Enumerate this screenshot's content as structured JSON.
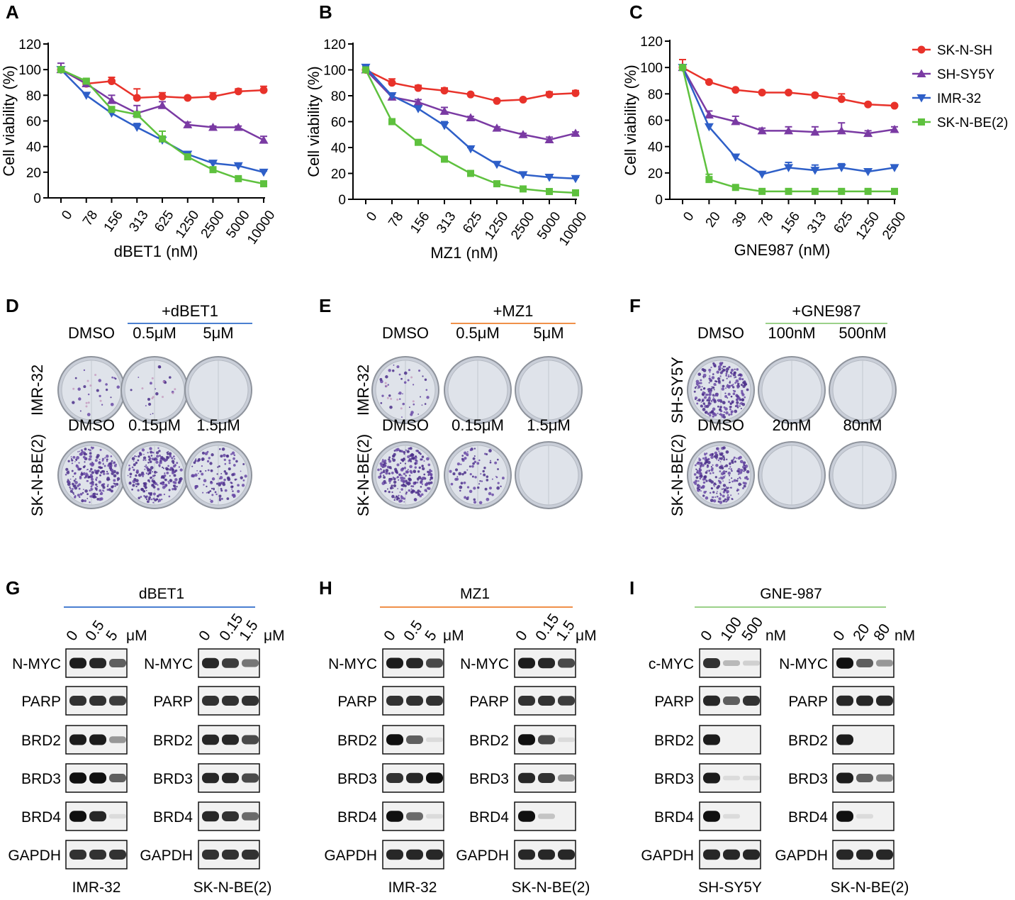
{
  "colors": {
    "SK-N-SH": "#e8322a",
    "SH-SY5Y": "#7a3aa3",
    "IMR-32": "#2e5fc8",
    "SK-N-BE(2)": "#5ec13e",
    "dbet1_line": "#4a7fd1",
    "mz1_line": "#f09049",
    "gne_line": "#9bd189"
  },
  "series_meta": [
    {
      "name": "SK-N-SH",
      "marker": "circle"
    },
    {
      "name": "SH-SY5Y",
      "marker": "triangle-up"
    },
    {
      "name": "IMR-32",
      "marker": "triangle-down"
    },
    {
      "name": "SK-N-BE(2)",
      "marker": "square"
    }
  ],
  "chart_data": [
    {
      "panel": "A",
      "type": "line",
      "title": "",
      "xlabel": "dBET1 (nM)",
      "ylabel": "Cell viability (%)",
      "categories": [
        "0",
        "78",
        "156",
        "313",
        "625",
        "1250",
        "2500",
        "5000",
        "10000"
      ],
      "ylim": [
        0,
        120
      ],
      "yticks": [
        0,
        20,
        40,
        60,
        80,
        100,
        120
      ],
      "series": [
        {
          "name": "SK-N-SH",
          "values": [
            100,
            89,
            91,
            78,
            79,
            78,
            79,
            83,
            84
          ],
          "errors": [
            2,
            2,
            3,
            7,
            3,
            1,
            3,
            2,
            3
          ]
        },
        {
          "name": "SH-SY5Y",
          "values": [
            100,
            89,
            76,
            66,
            72,
            57,
            55,
            55,
            45
          ],
          "errors": [
            5,
            3,
            4,
            6,
            3,
            2,
            1,
            1,
            3
          ]
        },
        {
          "name": "IMR-32",
          "values": [
            100,
            80,
            66,
            55,
            45,
            34,
            27,
            25,
            20
          ],
          "errors": [
            2,
            2,
            2,
            3,
            2,
            2,
            1,
            1,
            1
          ]
        },
        {
          "name": "SK-N-BE(2)",
          "values": [
            100,
            91,
            69,
            65,
            46,
            32,
            22,
            15,
            11
          ],
          "errors": [
            2,
            2,
            2,
            2,
            6,
            2,
            2,
            1,
            1
          ]
        }
      ]
    },
    {
      "panel": "B",
      "type": "line",
      "title": "",
      "xlabel": "MZ1 (nM)",
      "ylabel": "Cell viability (%)",
      "categories": [
        "0",
        "78",
        "156",
        "313",
        "625",
        "1250",
        "2500",
        "5000",
        "10000"
      ],
      "ylim": [
        0,
        120
      ],
      "yticks": [
        0,
        20,
        40,
        60,
        80,
        100,
        120
      ],
      "series": [
        {
          "name": "SK-N-SH",
          "values": [
            100,
            90,
            86,
            84,
            81,
            76,
            77,
            81,
            82
          ],
          "errors": [
            2,
            3,
            2,
            2,
            1,
            1,
            1,
            2,
            2
          ]
        },
        {
          "name": "SH-SY5Y",
          "values": [
            100,
            79,
            75,
            68,
            63,
            55,
            50,
            46,
            51
          ],
          "errors": [
            2,
            2,
            2,
            3,
            1,
            1,
            1,
            2,
            1
          ]
        },
        {
          "name": "IMR-32",
          "values": [
            102,
            80,
            70,
            57,
            39,
            27,
            19,
            17,
            16
          ],
          "errors": [
            1,
            2,
            2,
            3,
            1,
            2,
            1,
            1,
            1
          ]
        },
        {
          "name": "SK-N-BE(2)",
          "values": [
            100,
            60,
            44,
            31,
            20,
            12,
            8,
            6,
            5
          ],
          "errors": [
            2,
            1,
            1,
            2,
            1,
            1,
            1,
            1,
            1
          ]
        }
      ]
    },
    {
      "panel": "C",
      "type": "line",
      "title": "",
      "xlabel": "GNE987 (nM)",
      "ylabel": "Cell viability (%)",
      "categories": [
        "0",
        "20",
        "39",
        "78",
        "156",
        "313",
        "625",
        "1250",
        "2500"
      ],
      "ylim": [
        0,
        120
      ],
      "yticks": [
        0,
        20,
        40,
        60,
        80,
        100,
        120
      ],
      "legend": [
        "SK-N-SH",
        "SH-SY5Y",
        "IMR-32",
        "SK-N-BE(2)"
      ],
      "legend_position": "right",
      "series": [
        {
          "name": "SK-N-SH",
          "values": [
            100,
            89,
            83,
            81,
            81,
            79,
            76,
            72,
            71
          ],
          "errors": [
            6,
            1,
            1,
            1,
            1,
            1,
            4,
            1,
            1
          ]
        },
        {
          "name": "SH-SY5Y",
          "values": [
            100,
            64,
            59,
            52,
            52,
            51,
            52,
            50,
            53
          ],
          "errors": [
            2,
            3,
            4,
            2,
            3,
            4,
            6,
            2,
            2
          ]
        },
        {
          "name": "IMR-32",
          "values": [
            100,
            55,
            32,
            19,
            24,
            22,
            24,
            21,
            24
          ],
          "errors": [
            2,
            2,
            2,
            2,
            4,
            4,
            3,
            2,
            1
          ]
        },
        {
          "name": "SK-N-BE(2)",
          "values": [
            100,
            15,
            9,
            6,
            6,
            6,
            6,
            6,
            6
          ],
          "errors": [
            2,
            4,
            1,
            1,
            1,
            1,
            1,
            1,
            1
          ]
        }
      ]
    }
  ],
  "colony": [
    {
      "panel": "D",
      "drug": "+dBET1",
      "line_color_key": "dbet1_line",
      "rows": [
        {
          "cell": "IMR-32",
          "labels": [
            "DMSO",
            "0.5μM",
            "5μM"
          ],
          "density": [
            0.08,
            0.06,
            0.0
          ]
        },
        {
          "cell": "SK-N-BE(2)",
          "labels": [
            "DMSO",
            "0.15μM",
            "1.5μM"
          ],
          "density": [
            0.9,
            0.85,
            0.45
          ]
        }
      ]
    },
    {
      "panel": "E",
      "drug": "+MZ1",
      "line_color_key": "mz1_line",
      "rows": [
        {
          "cell": "IMR-32",
          "labels": [
            "DMSO",
            "0.5μM",
            "5μM"
          ],
          "density": [
            0.15,
            0.0,
            0.0
          ]
        },
        {
          "cell": "SK-N-BE(2)",
          "labels": [
            "DMSO",
            "0.15μM",
            "1.5μM"
          ],
          "density": [
            0.9,
            0.3,
            0.0
          ]
        }
      ]
    },
    {
      "panel": "F",
      "drug": "+GNE987",
      "line_color_key": "gne_line",
      "rows": [
        {
          "cell": "SH-SY5Y",
          "labels": [
            "DMSO",
            "100nM",
            "500nM"
          ],
          "density": [
            1.0,
            0.0,
            0.0
          ]
        },
        {
          "cell": "SK-N-BE(2)",
          "labels": [
            "DMSO",
            "20nM",
            "80nM"
          ],
          "density": [
            0.95,
            0.0,
            0.0
          ]
        }
      ]
    }
  ],
  "western": [
    {
      "panel": "G",
      "drug": "dBET1",
      "line_color_key": "dbet1_line",
      "blots": [
        {
          "cell": "IMR-32",
          "doses": [
            "0",
            "0.5",
            "5"
          ],
          "unit": "μM",
          "proteins": [
            "N-MYC",
            "PARP",
            "BRD2",
            "BRD3",
            "BRD4",
            "GAPDH"
          ],
          "bands": [
            [
              0.9,
              0.85,
              0.6
            ],
            [
              0.8,
              0.8,
              0.75
            ],
            [
              0.9,
              0.9,
              0.35
            ],
            [
              0.95,
              0.95,
              0.6
            ],
            [
              0.95,
              0.85,
              0.05
            ],
            [
              0.8,
              0.8,
              0.8
            ]
          ]
        },
        {
          "cell": "SK-N-BE(2)",
          "doses": [
            "0",
            "0.15",
            "1.5"
          ],
          "unit": "μM",
          "proteins": [
            "N-MYC",
            "PARP",
            "BRD2",
            "BRD3",
            "BRD4",
            "GAPDH"
          ],
          "bands": [
            [
              0.85,
              0.75,
              0.5
            ],
            [
              0.8,
              0.8,
              0.8
            ],
            [
              0.85,
              0.85,
              0.7
            ],
            [
              0.85,
              0.85,
              0.7
            ],
            [
              0.85,
              0.8,
              0.55
            ],
            [
              0.8,
              0.8,
              0.8
            ]
          ]
        }
      ]
    },
    {
      "panel": "H",
      "drug": "MZ1",
      "line_color_key": "mz1_line",
      "blots": [
        {
          "cell": "IMR-32",
          "doses": [
            "0",
            "0.5",
            "5"
          ],
          "unit": "μM",
          "proteins": [
            "N-MYC",
            "PARP",
            "BRD2",
            "BRD3",
            "BRD4",
            "GAPDH"
          ],
          "bands": [
            [
              0.9,
              0.85,
              0.7
            ],
            [
              0.8,
              0.8,
              0.8
            ],
            [
              0.95,
              0.6,
              0.05
            ],
            [
              0.8,
              0.85,
              0.95
            ],
            [
              0.95,
              0.55,
              0.05
            ],
            [
              0.85,
              0.85,
              0.85
            ]
          ]
        },
        {
          "cell": "SK-N-BE(2)",
          "doses": [
            "0",
            "0.15",
            "1.5"
          ],
          "unit": "μM",
          "proteins": [
            "N-MYC",
            "PARP",
            "BRD2",
            "BRD3",
            "BRD4",
            "GAPDH"
          ],
          "bands": [
            [
              0.9,
              0.85,
              0.7
            ],
            [
              0.8,
              0.8,
              0.75
            ],
            [
              0.95,
              0.7,
              0.05
            ],
            [
              0.85,
              0.8,
              0.4
            ],
            [
              0.95,
              0.15,
              0.0
            ],
            [
              0.85,
              0.85,
              0.85
            ]
          ]
        }
      ]
    },
    {
      "panel": "I",
      "drug": "GNE-987",
      "line_color_key": "gne_line",
      "blots": [
        {
          "cell": "SH-SY5Y",
          "doses": [
            "0",
            "100",
            "500"
          ],
          "unit": "nM",
          "proteins": [
            "c-MYC",
            "PARP",
            "BRD2",
            "BRD3",
            "BRD4",
            "GAPDH"
          ],
          "bands": [
            [
              0.8,
              0.2,
              0.1
            ],
            [
              0.85,
              0.6,
              0.8
            ],
            [
              0.9,
              0.0,
              0.0
            ],
            [
              0.9,
              0.05,
              0.05
            ],
            [
              0.95,
              0.05,
              0.0
            ],
            [
              0.85,
              0.85,
              0.85
            ]
          ]
        },
        {
          "cell": "SK-N-BE(2)",
          "doses": [
            "0",
            "20",
            "80"
          ],
          "unit": "nM",
          "proteins": [
            "N-MYC",
            "PARP",
            "BRD2",
            "BRD3",
            "BRD4",
            "GAPDH"
          ],
          "bands": [
            [
              0.95,
              0.6,
              0.35
            ],
            [
              0.85,
              0.85,
              0.85
            ],
            [
              0.9,
              0.0,
              0.0
            ],
            [
              0.9,
              0.6,
              0.45
            ],
            [
              0.95,
              0.05,
              0.0
            ],
            [
              0.85,
              0.85,
              0.85
            ]
          ]
        }
      ]
    }
  ]
}
